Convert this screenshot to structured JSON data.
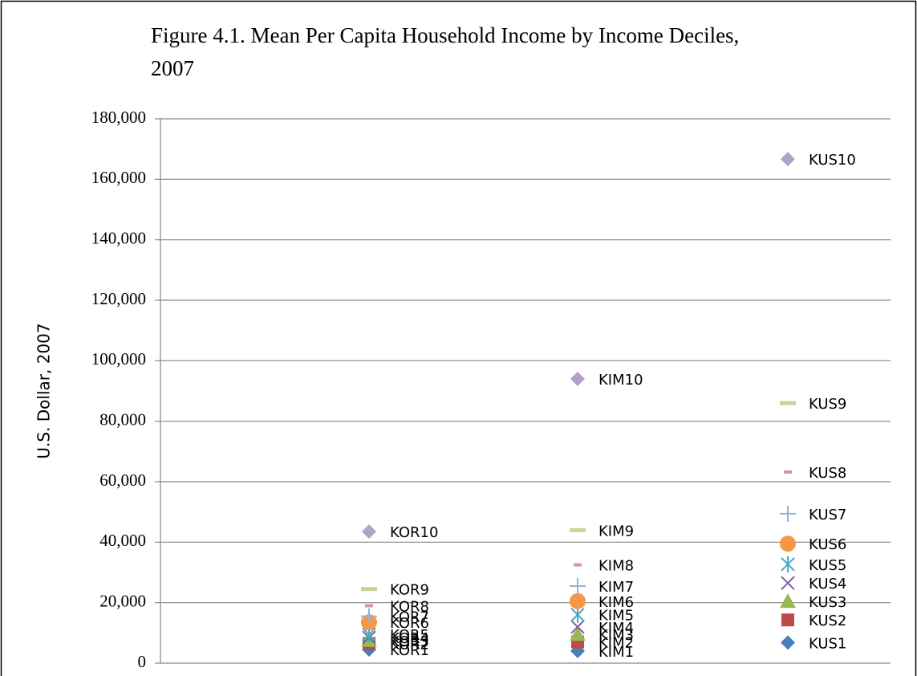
{
  "chart_data": {
    "type": "scatter",
    "title": [
      "Figure 4.1. Mean Per Capita Household Income by Income Deciles,",
      "2007"
    ],
    "ylabel": "U.S. Dollar, 2007",
    "categories": [
      null,
      null,
      null
    ],
    "ylim": [
      0,
      180000
    ],
    "yticks": [
      0,
      {
        "value": 20000,
        "label": "20,000"
      },
      {
        "value": 40000,
        "label": "40,000"
      },
      {
        "value": 60000,
        "label": "60,000"
      },
      {
        "value": 80000,
        "label": "80,000"
      },
      {
        "value": 100000,
        "label": "100,000"
      },
      {
        "value": 120000,
        "label": "120,000"
      },
      {
        "value": 140000,
        "label": "140,000"
      },
      {
        "value": 160000,
        "label": "160,000"
      },
      {
        "value": 180000,
        "label": "180,000"
      }
    ],
    "grid": true,
    "series": [
      {
        "marker": "diamond",
        "color": "#4a7ebb",
        "values": [
          4500,
          4000,
          6800
        ],
        "point_labels": [
          "KOR1",
          "KIM1",
          "KUS1"
        ]
      },
      {
        "marker": "square",
        "color": "#be4b48",
        "values": [
          6500,
          7000,
          14300
        ],
        "point_labels": [
          "KOR2",
          "KIM2",
          "KUS2"
        ]
      },
      {
        "marker": "triangle",
        "color": "#98b954",
        "values": [
          7500,
          9500,
          20400
        ],
        "point_labels": [
          "KOR3",
          "KIM3",
          "KUS3"
        ]
      },
      {
        "marker": "x",
        "color": "#7d60a0",
        "values": [
          8500,
          12000,
          26500
        ],
        "point_labels": [
          "KOR4",
          "KIM4",
          "KUS4"
        ]
      },
      {
        "marker": "star",
        "color": "#46aac5",
        "values": [
          9500,
          16000,
          32700
        ],
        "point_labels": [
          "KOR5",
          "KIM5",
          "KUS5"
        ]
      },
      {
        "marker": "circle",
        "color": "#f79646",
        "values": [
          13500,
          20500,
          39500
        ],
        "point_labels": [
          "KOR6",
          "KIM6",
          "KUS6"
        ]
      },
      {
        "marker": "plus",
        "color": "#95b3d7",
        "values": [
          15500,
          25500,
          49400
        ],
        "point_labels": [
          "KOR7",
          "KIM7",
          "KUS7"
        ]
      },
      {
        "marker": "dash",
        "color": "#d99694",
        "values": [
          19000,
          32500,
          63200
        ],
        "point_labels": [
          "KOR8",
          "KIM8",
          "KUS8"
        ]
      },
      {
        "marker": "longdash",
        "color": "#c3d69b",
        "values": [
          24500,
          44000,
          86000
        ],
        "point_labels": [
          "KOR9",
          "KIM9",
          "KUS9"
        ]
      },
      {
        "marker": "diamond",
        "color": "#b3a2c7",
        "values": [
          43500,
          94000,
          166700
        ],
        "point_labels": [
          "KOR10",
          "KIM10",
          "KUS10"
        ]
      }
    ]
  }
}
